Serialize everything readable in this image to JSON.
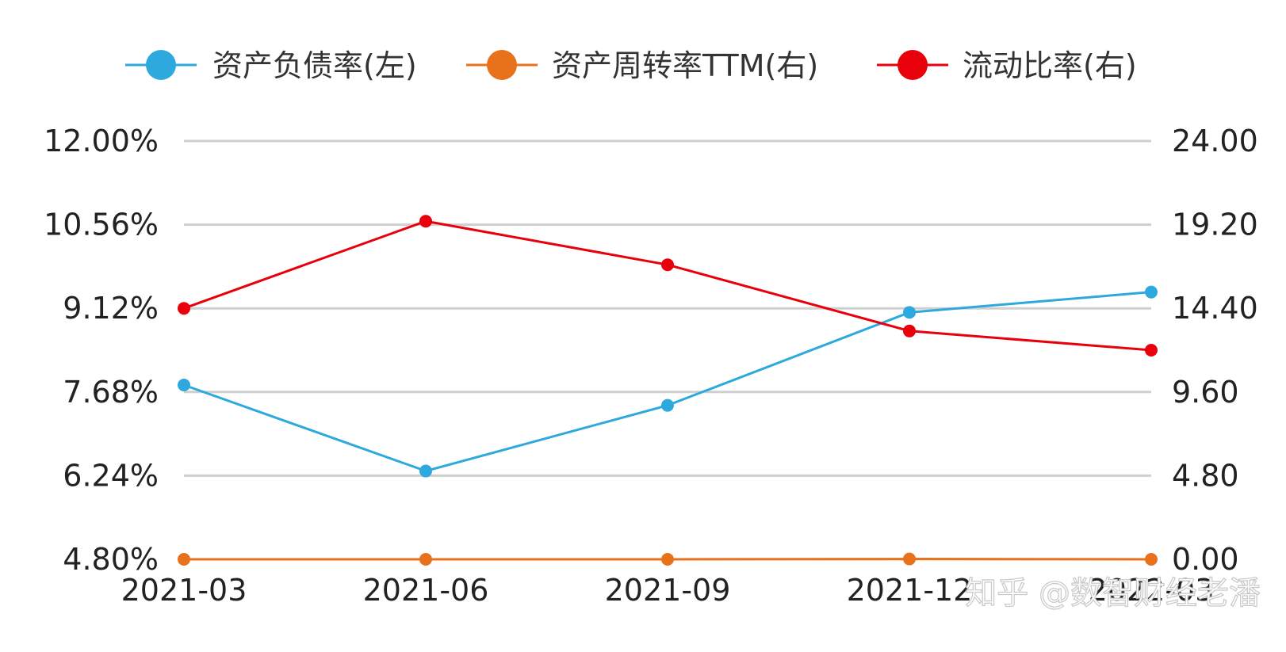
{
  "chart_data": {
    "type": "line",
    "categories": [
      "2021-03",
      "2021-06",
      "2021-09",
      "2021-12",
      "2022-03"
    ],
    "y_left": {
      "ticks": [
        "4.80%",
        "6.24%",
        "7.68%",
        "9.12%",
        "10.56%",
        "12.00%"
      ],
      "range": [
        4.8,
        12.0
      ]
    },
    "y_right": {
      "ticks": [
        "0.00",
        "4.80",
        "9.60",
        "14.40",
        "19.20",
        "24.00"
      ],
      "range": [
        0,
        24
      ]
    },
    "series": [
      {
        "name": "资产负债率(左)",
        "axis": "left",
        "color": "#2ea9de",
        "values": [
          7.8,
          6.32,
          7.45,
          9.05,
          9.4
        ]
      },
      {
        "name": "资产周转率TTM(右)",
        "axis": "right",
        "color": "#e8711c",
        "values": [
          0.0,
          0.0,
          0.0,
          0.02,
          0.0
        ]
      },
      {
        "name": "流动比率(右)",
        "axis": "right",
        "color": "#e8000b",
        "values": [
          14.4,
          19.4,
          16.9,
          13.1,
          12.0
        ]
      }
    ],
    "legend": "top",
    "grid": true
  },
  "watermark": "知乎 @数智财经老潘"
}
